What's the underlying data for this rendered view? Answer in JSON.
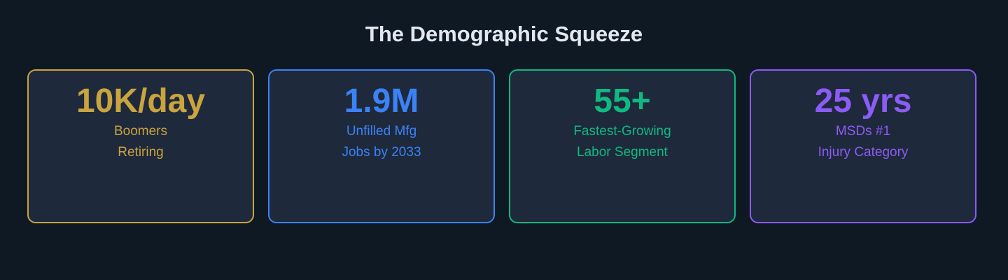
{
  "title": "The Demographic Squeeze",
  "cards": [
    {
      "value": "10K/day",
      "lines": [
        "Boomers",
        "Retiring"
      ]
    },
    {
      "value": "1.9M",
      "lines": [
        "Unfilled Mfg",
        "Jobs by 2033"
      ]
    },
    {
      "value": "55+",
      "lines": [
        "Fastest-Growing",
        "Labor Segment"
      ]
    },
    {
      "value": "25 yrs",
      "lines": [
        "MSDs #1",
        "Injury Category"
      ]
    }
  ]
}
